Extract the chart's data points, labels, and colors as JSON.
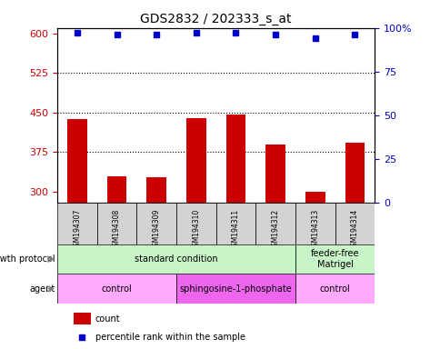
{
  "title": "GDS2832 / 202333_s_at",
  "samples": [
    "GSM194307",
    "GSM194308",
    "GSM194309",
    "GSM194310",
    "GSM194311",
    "GSM194312",
    "GSM194313",
    "GSM194314"
  ],
  "counts": [
    437,
    330,
    328,
    440,
    447,
    390,
    300,
    393
  ],
  "percentiles": [
    97,
    96,
    96,
    97,
    97,
    96,
    94,
    96
  ],
  "ylim_left": [
    280,
    610
  ],
  "ylim_right": [
    0,
    100
  ],
  "yticks_left": [
    300,
    375,
    450,
    525,
    600
  ],
  "yticks_right": [
    0,
    25,
    50,
    75,
    100
  ],
  "ytick_right_labels": [
    "0",
    "25",
    "50",
    "75",
    "100%"
  ],
  "bar_color": "#cc0000",
  "dot_color": "#0000cc",
  "bar_bottom": 280,
  "dotted_yticks": [
    375,
    450,
    525
  ],
  "growth_protocol_groups": [
    {
      "label": "standard condition",
      "start": 0,
      "end": 6,
      "color": "#c8f5c8"
    },
    {
      "label": "feeder-free\nMatrigel",
      "start": 6,
      "end": 8,
      "color": "#c8f5c8"
    }
  ],
  "agent_groups": [
    {
      "label": "control",
      "start": 0,
      "end": 3,
      "color": "#ffaaff"
    },
    {
      "label": "sphingosine-1-phosphate",
      "start": 3,
      "end": 6,
      "color": "#ee66ee"
    },
    {
      "label": "control",
      "start": 6,
      "end": 8,
      "color": "#ffaaff"
    }
  ],
  "sample_box_color": "#d3d3d3",
  "bar_color_legend": "#cc0000",
  "dot_color_legend": "#0000cc"
}
